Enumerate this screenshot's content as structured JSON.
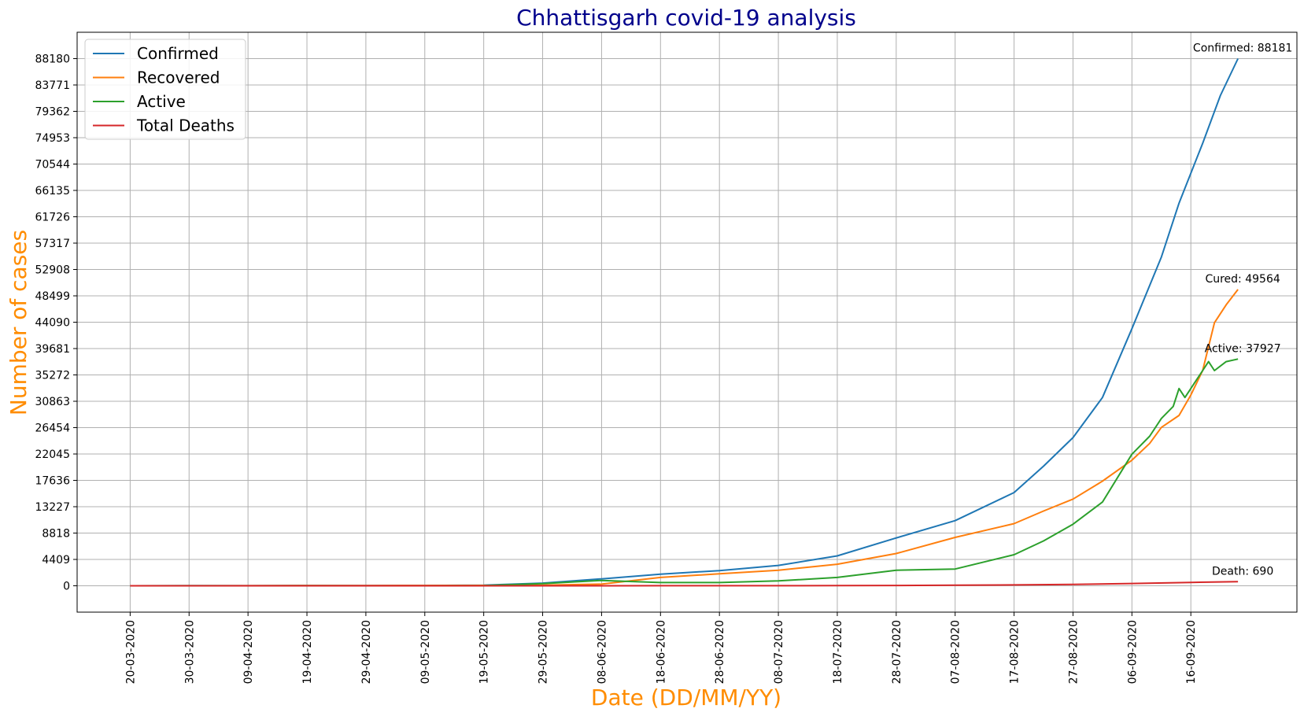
{
  "chart_data": {
    "type": "line",
    "title": "Chhattisgarh covid-19 analysis",
    "xlabel": "Date (DD/MM/YY)",
    "ylabel": "Number of cases",
    "x_start": "20-03-2020",
    "x_end": "24-09-2020",
    "xlim": [
      "11-03-2020",
      "04-10-2020"
    ],
    "ylim": [
      -4409,
      92589
    ],
    "x_ticks": [
      "20-03-2020",
      "30-03-2020",
      "09-04-2020",
      "19-04-2020",
      "29-04-2020",
      "09-05-2020",
      "19-05-2020",
      "29-05-2020",
      "08-06-2020",
      "18-06-2020",
      "28-06-2020",
      "08-07-2020",
      "18-07-2020",
      "28-07-2020",
      "07-08-2020",
      "17-08-2020",
      "27-08-2020",
      "06-09-2020",
      "16-09-2020"
    ],
    "y_ticks": [
      0,
      4409,
      8818,
      13227,
      17636,
      22045,
      26454,
      30863,
      35272,
      39681,
      44090,
      48499,
      52908,
      57317,
      61726,
      66135,
      70544,
      74953,
      79362,
      83771,
      88180
    ],
    "grid": true,
    "legend_position": "top-left",
    "series": [
      {
        "name": "Confirmed",
        "color": "#1f77b4",
        "points": [
          [
            "20-03-2020",
            1
          ],
          [
            "30-03-2020",
            9
          ],
          [
            "09-04-2020",
            11
          ],
          [
            "19-04-2020",
            36
          ],
          [
            "29-04-2020",
            38
          ],
          [
            "09-05-2020",
            59
          ],
          [
            "19-05-2020",
            101
          ],
          [
            "29-05-2020",
            447
          ],
          [
            "08-06-2020",
            1160
          ],
          [
            "18-06-2020",
            1946
          ],
          [
            "28-06-2020",
            2545
          ],
          [
            "08-07-2020",
            3415
          ],
          [
            "18-07-2020",
            5000
          ],
          [
            "28-07-2020",
            8000
          ],
          [
            "07-08-2020",
            10900
          ],
          [
            "17-08-2020",
            15600
          ],
          [
            "22-08-2020",
            20000
          ],
          [
            "27-08-2020",
            24800
          ],
          [
            "01-09-2020",
            31500
          ],
          [
            "06-09-2020",
            43000
          ],
          [
            "11-09-2020",
            55000
          ],
          [
            "14-09-2020",
            64000
          ],
          [
            "18-09-2020",
            74000
          ],
          [
            "21-09-2020",
            82000
          ],
          [
            "24-09-2020",
            88181
          ]
        ]
      },
      {
        "name": "Recovered",
        "color": "#ff7f0e",
        "points": [
          [
            "20-03-2020",
            0
          ],
          [
            "30-03-2020",
            2
          ],
          [
            "09-04-2020",
            9
          ],
          [
            "19-04-2020",
            24
          ],
          [
            "29-04-2020",
            36
          ],
          [
            "09-05-2020",
            55
          ],
          [
            "19-05-2020",
            60
          ],
          [
            "29-05-2020",
            90
          ],
          [
            "08-06-2020",
            270
          ],
          [
            "18-06-2020",
            1400
          ],
          [
            "28-06-2020",
            2000
          ],
          [
            "08-07-2020",
            2600
          ],
          [
            "18-07-2020",
            3600
          ],
          [
            "28-07-2020",
            5400
          ],
          [
            "07-08-2020",
            8100
          ],
          [
            "17-08-2020",
            10400
          ],
          [
            "22-08-2020",
            12500
          ],
          [
            "27-08-2020",
            14500
          ],
          [
            "01-09-2020",
            17500
          ],
          [
            "06-09-2020",
            21000
          ],
          [
            "09-09-2020",
            23800
          ],
          [
            "11-09-2020",
            26500
          ],
          [
            "14-09-2020",
            28500
          ],
          [
            "16-09-2020",
            31900
          ],
          [
            "18-09-2020",
            36000
          ],
          [
            "20-09-2020",
            44000
          ],
          [
            "22-09-2020",
            47000
          ],
          [
            "24-09-2020",
            49564
          ]
        ]
      },
      {
        "name": "Active",
        "color": "#2ca02c",
        "points": [
          [
            "20-03-2020",
            1
          ],
          [
            "30-03-2020",
            7
          ],
          [
            "09-04-2020",
            2
          ],
          [
            "19-04-2020",
            12
          ],
          [
            "29-04-2020",
            2
          ],
          [
            "09-05-2020",
            4
          ],
          [
            "19-05-2020",
            41
          ],
          [
            "29-05-2020",
            357
          ],
          [
            "08-06-2020",
            890
          ],
          [
            "18-06-2020",
            546
          ],
          [
            "28-06-2020",
            545
          ],
          [
            "08-07-2020",
            815
          ],
          [
            "18-07-2020",
            1400
          ],
          [
            "28-07-2020",
            2600
          ],
          [
            "07-08-2020",
            2800
          ],
          [
            "17-08-2020",
            5200
          ],
          [
            "22-08-2020",
            7500
          ],
          [
            "27-08-2020",
            10300
          ],
          [
            "01-09-2020",
            14000
          ],
          [
            "06-09-2020",
            22000
          ],
          [
            "09-09-2020",
            25000
          ],
          [
            "11-09-2020",
            28000
          ],
          [
            "13-09-2020",
            30000
          ],
          [
            "14-09-2020",
            33000
          ],
          [
            "15-09-2020",
            31500
          ],
          [
            "18-09-2020",
            36000
          ],
          [
            "19-09-2020",
            37500
          ],
          [
            "20-09-2020",
            36000
          ],
          [
            "22-09-2020",
            37500
          ],
          [
            "24-09-2020",
            37927
          ]
        ]
      },
      {
        "name": "Total Deaths",
        "color": "#d62728",
        "points": [
          [
            "20-03-2020",
            0
          ],
          [
            "30-03-2020",
            0
          ],
          [
            "09-04-2020",
            0
          ],
          [
            "19-04-2020",
            0
          ],
          [
            "29-04-2020",
            0
          ],
          [
            "09-05-2020",
            0
          ],
          [
            "19-05-2020",
            0
          ],
          [
            "29-05-2020",
            1
          ],
          [
            "08-06-2020",
            6
          ],
          [
            "18-06-2020",
            12
          ],
          [
            "28-06-2020",
            13
          ],
          [
            "08-07-2020",
            14
          ],
          [
            "18-07-2020",
            24
          ],
          [
            "28-07-2020",
            48
          ],
          [
            "07-08-2020",
            91
          ],
          [
            "17-08-2020",
            149
          ],
          [
            "27-08-2020",
            220
          ],
          [
            "06-09-2020",
            380
          ],
          [
            "16-09-2020",
            560
          ],
          [
            "24-09-2020",
            690
          ]
        ]
      }
    ],
    "annotations": [
      {
        "text": "Confirmed: 88181",
        "date": "24-09-2020",
        "value": 88181
      },
      {
        "text": "Cured: 49564",
        "date": "24-09-2020",
        "value": 49564
      },
      {
        "text": "Active: 37927",
        "date": "24-09-2020",
        "value": 37927
      },
      {
        "text": "Death: 690",
        "date": "24-09-2020",
        "value": 690
      }
    ],
    "colors": {
      "title": "#00008b",
      "axis_label": "#ff8c00",
      "grid": "#b0b0b0"
    }
  }
}
